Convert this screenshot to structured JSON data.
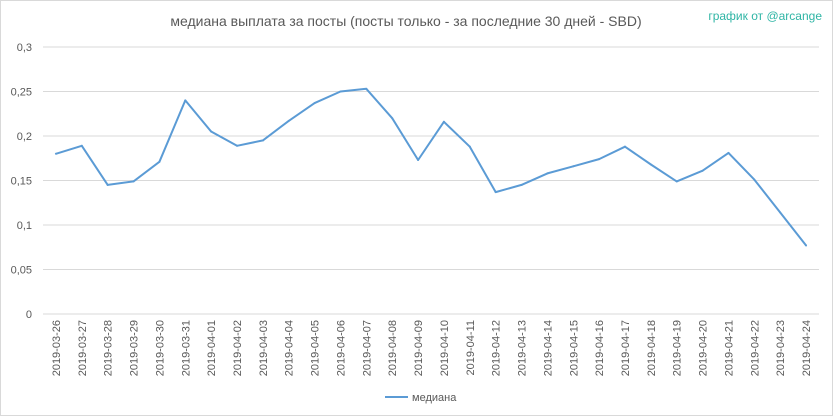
{
  "chart_data": {
    "type": "line",
    "title": "медиана выплата за посты  (посты только - за последние 30 дней - SBD)",
    "watermark": "график от @arcange",
    "categories": [
      "2019-03-26",
      "2019-03-27",
      "2019-03-28",
      "2019-03-29",
      "2019-03-30",
      "2019-03-31",
      "2019-04-01",
      "2019-04-02",
      "2019-04-03",
      "2019-04-04",
      "2019-04-05",
      "2019-04-06",
      "2019-04-07",
      "2019-04-08",
      "2019-04-09",
      "2019-04-10",
      "2019-04-11",
      "2019-04-12",
      "2019-04-13",
      "2019-04-14",
      "2019-04-15",
      "2019-04-16",
      "2019-04-17",
      "2019-04-18",
      "2019-04-19",
      "2019-04-20",
      "2019-04-21",
      "2019-04-22",
      "2019-04-23",
      "2019-04-24"
    ],
    "series": [
      {
        "name": "медиана",
        "color": "#5b9bd5",
        "values": [
          0.18,
          0.189,
          0.145,
          0.149,
          0.171,
          0.24,
          0.205,
          0.189,
          0.195,
          0.217,
          0.237,
          0.25,
          0.253,
          0.22,
          0.173,
          0.216,
          0.188,
          0.137,
          0.145,
          0.158,
          0.166,
          0.174,
          0.188,
          0.168,
          0.149,
          0.161,
          0.181,
          0.151,
          0.114,
          0.077
        ]
      }
    ],
    "ylim": [
      0,
      0.3
    ],
    "yticks": [
      "0",
      "0,05",
      "0,1",
      "0,15",
      "0,2",
      "0,25",
      "0,3"
    ],
    "grid": true,
    "legend": "bottom",
    "gridColor": "#d9d9d9",
    "textColor": "#595959",
    "watermarkColor": "#2fb5a5"
  }
}
